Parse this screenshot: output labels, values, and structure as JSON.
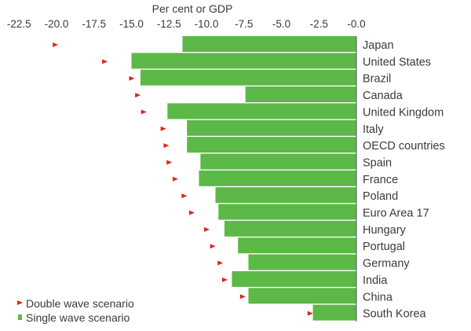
{
  "chart_data": {
    "type": "bar",
    "orientation": "horizontal",
    "title": "Per cent or GDP",
    "xlim": [
      -22.5,
      0
    ],
    "xticks": [
      "-22.5",
      "-20.0",
      "-17.5",
      "-15.0",
      "-12.5",
      "-10.0",
      "-7.5",
      "-5.0",
      "-2.5",
      "-0.0"
    ],
    "xtick_values": [
      -22.5,
      -20.0,
      -17.5,
      -15.0,
      -12.5,
      -10.0,
      -7.5,
      -5.0,
      -2.5,
      0.0
    ],
    "categories": [
      "Japan",
      "United States",
      "Brazil",
      "Canada",
      "United Kingdom",
      "Italy",
      "OECD countries",
      "Spain",
      "France",
      "Poland",
      "Euro Area 17",
      "Hungary",
      "Portugal",
      "Germany",
      "India",
      "China",
      "South Korea"
    ],
    "series": [
      {
        "name": "Single wave scenario",
        "marker": "bar",
        "color": "#5cb847",
        "values": [
          -11.6,
          -15.0,
          -14.4,
          -7.4,
          -12.6,
          -11.3,
          -11.3,
          -10.4,
          -10.5,
          -9.4,
          -9.2,
          -8.8,
          -7.9,
          -7.2,
          -8.3,
          -7.2,
          -2.9
        ]
      },
      {
        "name": "Double wave scenario",
        "marker": "triangle",
        "color": "#e0231c",
        "values": [
          -20.1,
          -16.8,
          -15.0,
          -14.6,
          -14.2,
          -12.9,
          -12.7,
          -12.5,
          -12.1,
          -11.5,
          -11.0,
          -10.0,
          -9.6,
          -9.1,
          -8.8,
          -7.6,
          -3.1
        ]
      }
    ],
    "legend": {
      "position": "bottom-left",
      "entries": [
        "Double wave scenario",
        "Single wave scenario"
      ]
    }
  }
}
